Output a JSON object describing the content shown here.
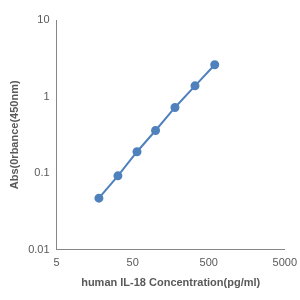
{
  "chart_data": {
    "type": "line",
    "x_label": "human IL-18 Concentration(pg/ml)",
    "y_label": "Abs(0rbance(450nm)",
    "x": [
      18,
      32,
      57,
      100,
      180,
      330,
      600
    ],
    "series": [
      {
        "name": "IL-18",
        "color": "#4f81bd",
        "marker": "circle",
        "line_style": "solid",
        "values": [
          0.047,
          0.092,
          0.19,
          0.36,
          0.72,
          1.38,
          2.6
        ]
      }
    ],
    "xlim": [
      5,
      5000
    ],
    "xticks": [
      5,
      50,
      500,
      5000
    ],
    "ylim": [
      0.01,
      10
    ],
    "yticks": [
      0.01,
      0.1,
      1,
      10
    ],
    "log": true,
    "grid": false
  }
}
